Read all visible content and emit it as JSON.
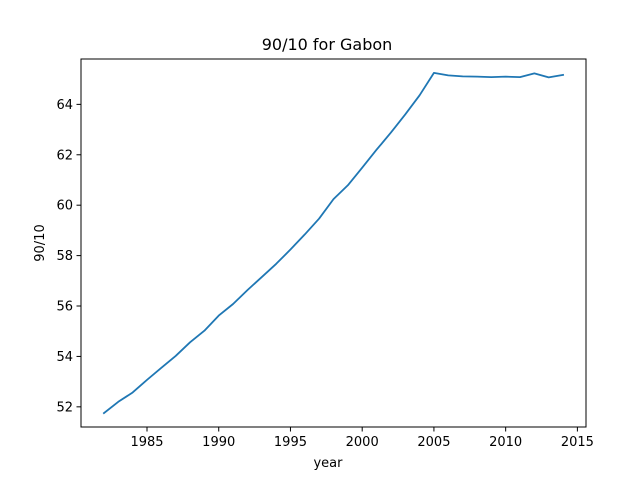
{
  "chart_data": {
    "type": "line",
    "title": "90/10 for Gabon",
    "xlabel": "year",
    "ylabel": "90/10",
    "xlim": [
      1980.4,
      2015.6
    ],
    "ylim": [
      51.2,
      65.8
    ],
    "xticks": [
      1985,
      1990,
      1995,
      2000,
      2005,
      2010,
      2015
    ],
    "yticks": [
      52,
      54,
      56,
      58,
      60,
      62,
      64
    ],
    "grid": false,
    "series": [
      {
        "color": "#1f77b4",
        "x": [
          1982,
          1983,
          1984,
          1985,
          1986,
          1987,
          1988,
          1989,
          1990,
          1991,
          1992,
          1993,
          1994,
          1995,
          1996,
          1997,
          1998,
          1999,
          2000,
          2001,
          2002,
          2003,
          2004,
          2005,
          2006,
          2007,
          2008,
          2009,
          2010,
          2011,
          2012,
          2013,
          2014
        ],
        "y": [
          51.75,
          52.2,
          52.57,
          53.07,
          53.55,
          54.02,
          54.56,
          55.02,
          55.62,
          56.08,
          56.63,
          57.15,
          57.67,
          58.24,
          58.84,
          59.47,
          60.24,
          60.79,
          61.49,
          62.2,
          62.88,
          63.6,
          64.36,
          65.25,
          65.15,
          65.11,
          65.1,
          65.08,
          65.1,
          65.08,
          65.23,
          65.07,
          65.17
        ]
      }
    ]
  }
}
